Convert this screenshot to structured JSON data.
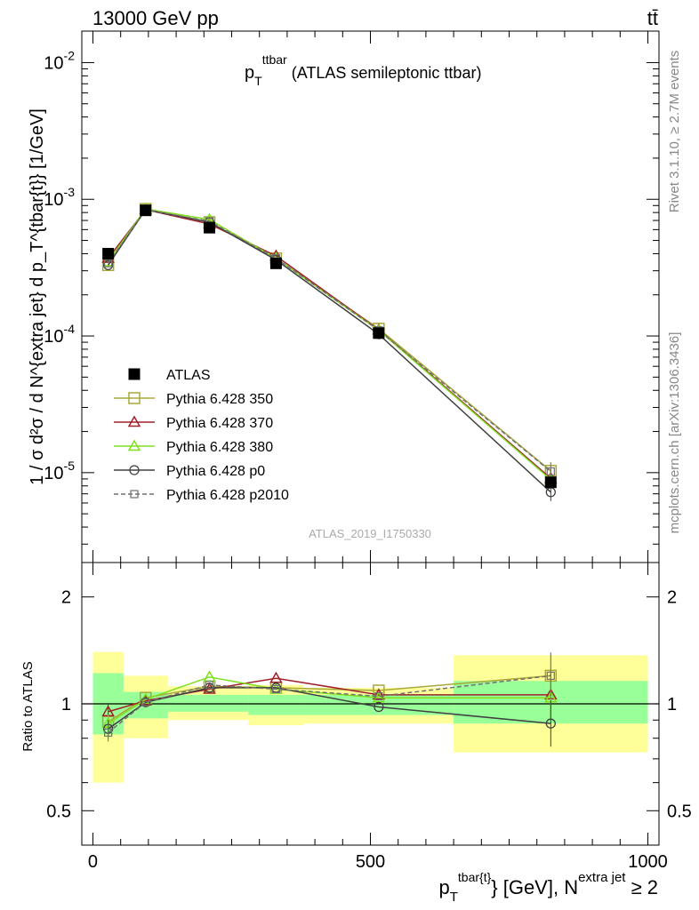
{
  "header": {
    "left": "13000 GeV pp",
    "right": "tt̄"
  },
  "side_labels": {
    "rivet": "Rivet 3.1.10, ≥ 2.7M events",
    "mcplots": "mcplots.cern.ch [arXiv:1306.3436]"
  },
  "chart_data": [
    {
      "type": "line",
      "panel": "main",
      "title": {
        "main": "p",
        "sub": "T",
        "sup": "ttbar",
        "rest": " (ATLAS semileptonic ttbar)"
      },
      "analysis_label": "ATLAS_2019_I1750330",
      "ylabel": "1 / σ d²σ / d N^{extra jet} d p_T^{tbar{t}} [1/GeV]",
      "yscale": "log",
      "xlim": [
        -20,
        1020
      ],
      "ylim": [
        2.2e-06,
        0.017
      ],
      "ytick_labels": [
        {
          "value": 1e-05,
          "base": "10",
          "exp": "-5"
        },
        {
          "value": 0.0001,
          "base": "10",
          "exp": "-4"
        },
        {
          "value": 0.001,
          "base": "10",
          "exp": "-3"
        },
        {
          "value": 0.01,
          "base": "10",
          "exp": "-2"
        }
      ],
      "x": [
        27.5,
        95,
        210,
        330,
        515,
        825
      ],
      "bin_edges": [
        0,
        55,
        135,
        280,
        380,
        650,
        1000
      ],
      "legend_position": "lower-left",
      "series": [
        {
          "name": "ATLAS",
          "color": "#000000",
          "marker": "filled-square",
          "line": "none",
          "values": [
            0.0004,
            0.00083,
            0.00062,
            0.00034,
            0.000105,
            8.5e-06
          ]
        },
        {
          "name": "Pythia 6.428 350",
          "color": "#a8a83a",
          "marker": "open-square",
          "line": "solid",
          "values": [
            0.00033,
            0.00085,
            0.00068,
            0.00037,
            0.000113,
            1.03e-05
          ]
        },
        {
          "name": "Pythia 6.428 370",
          "color": "#a0202a",
          "marker": "open-triangle",
          "line": "solid",
          "values": [
            0.00037,
            0.00084,
            0.00066,
            0.000385,
            0.000111,
            9.1e-06
          ]
        },
        {
          "name": "Pythia 6.428 380",
          "color": "#80e020",
          "marker": "open-triangle",
          "line": "solid",
          "values": [
            0.00035,
            0.00085,
            0.00071,
            0.00037,
            0.00011,
            8.9e-06
          ]
        },
        {
          "name": "Pythia 6.428 p0",
          "color": "#404040",
          "marker": "open-circle",
          "line": "solid",
          "values": [
            0.00033,
            0.00084,
            0.00068,
            0.00036,
            0.000103,
            7.2e-06
          ]
        },
        {
          "name": "Pythia 6.428 p2010",
          "color": "#707070",
          "marker": "open-square-small",
          "line": "dashed",
          "values": [
            0.00034,
            0.00084,
            0.00069,
            0.00037,
            0.00011,
            1.02e-05
          ]
        }
      ]
    },
    {
      "type": "line",
      "panel": "ratio",
      "ylabel": "Ratio to ATLAS",
      "yscale": "log",
      "ylim": [
        0.4,
        2.5
      ],
      "ytick_labels": [
        {
          "value": 0.5,
          "label": "0.5"
        },
        {
          "value": 1,
          "label": "1"
        },
        {
          "value": 2,
          "label": "2"
        }
      ],
      "xlim": [
        -20,
        1020
      ],
      "xtick_labels": [
        {
          "value": 0,
          "label": "0"
        },
        {
          "value": 500,
          "label": "500"
        },
        {
          "value": 1000,
          "label": "1000"
        }
      ],
      "xlabel": {
        "p": "p",
        "sub": "T",
        "sup": "tbar{t}",
        "mid": "} [GeV], N",
        "sup2": "extra jet",
        "end": " ≥ 2"
      },
      "bands": {
        "bin_edges": [
          0,
          55,
          135,
          280,
          380,
          650,
          1000
        ],
        "inner": {
          "color": "#99ff99",
          "lo": [
            0.82,
            0.91,
            0.95,
            0.93,
            0.93,
            0.88
          ],
          "hi": [
            1.22,
            1.08,
            1.06,
            1.06,
            1.06,
            1.16
          ]
        },
        "outer": {
          "color": "#ffff99",
          "lo": [
            0.6,
            0.8,
            0.9,
            0.87,
            0.88,
            0.73
          ],
          "hi": [
            1.4,
            1.2,
            1.12,
            1.13,
            1.11,
            1.37
          ]
        }
      },
      "series": [
        {
          "name": "Pythia 6.428 350",
          "color": "#a8a83a",
          "values": [
            0.89,
            1.04,
            1.12,
            1.11,
            1.09,
            1.2
          ]
        },
        {
          "name": "Pythia 6.428 370",
          "color": "#a0202a",
          "values": [
            0.95,
            1.02,
            1.1,
            1.18,
            1.06,
            1.06
          ]
        },
        {
          "name": "Pythia 6.428 380",
          "color": "#80e020",
          "values": [
            0.88,
            1.03,
            1.19,
            1.1,
            1.04,
            1.04
          ]
        },
        {
          "name": "Pythia 6.428 p0",
          "color": "#404040",
          "values": [
            0.85,
            1.01,
            1.11,
            1.11,
            0.98,
            0.88
          ]
        },
        {
          "name": "Pythia 6.428 p2010",
          "color": "#707070",
          "values": [
            0.83,
            1.01,
            1.13,
            1.1,
            1.05,
            1.2
          ]
        }
      ]
    }
  ]
}
